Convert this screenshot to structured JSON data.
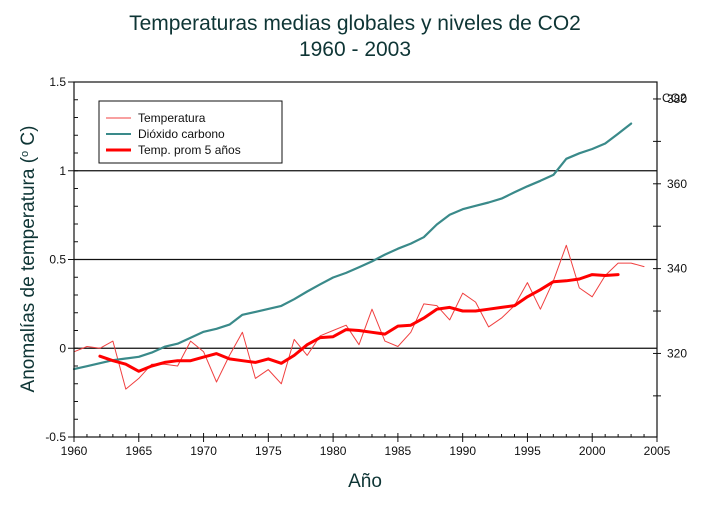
{
  "chart_data": {
    "type": "line",
    "title": "Temperaturas medias globales y niveles de CO2",
    "subtitle": "1960 - 2003",
    "xlabel": "Año",
    "ylabel": "Anomalías de temperatura (° C)",
    "ylabel_parts": {
      "main": "Anomalías de temperatura (",
      "sup": "o",
      "tail": " C)"
    },
    "y2label": "CO2",
    "xlim": [
      1960,
      2005
    ],
    "ylim": [
      -0.5,
      1.5
    ],
    "y2lim": [
      300.3,
      384.0
    ],
    "x_ticks": [
      1960,
      1965,
      1970,
      1975,
      1980,
      1985,
      1990,
      1995,
      2000,
      2005
    ],
    "x_tick_labels": [
      "1960",
      "1965",
      "1970",
      "1975",
      "1980",
      "1985",
      "1990",
      "1995",
      "2000",
      "2005"
    ],
    "y_ticks": [
      -0.5,
      0,
      0.5,
      1,
      1.5
    ],
    "y_tick_labels": [
      "-0.5",
      "0",
      "0.5",
      "1",
      "1.5"
    ],
    "y2_ticks": [
      320,
      340,
      360,
      380
    ],
    "y2_tick_labels": [
      "320",
      "340",
      "360",
      "380"
    ],
    "gridlines_y": [
      0,
      0.5,
      1
    ],
    "legend_position": "top-left",
    "series": [
      {
        "name": "Temperatura",
        "axis": "left",
        "color": "#f04040",
        "x": [
          1960,
          1961,
          1962,
          1963,
          1964,
          1965,
          1966,
          1967,
          1968,
          1969,
          1970,
          1971,
          1972,
          1973,
          1974,
          1975,
          1976,
          1977,
          1978,
          1979,
          1980,
          1981,
          1982,
          1983,
          1984,
          1985,
          1986,
          1987,
          1988,
          1989,
          1990,
          1991,
          1992,
          1993,
          1994,
          1995,
          1996,
          1997,
          1998,
          1999,
          2000,
          2001,
          2002,
          2003,
          2004
        ],
        "values": [
          -0.02,
          0.01,
          0.0,
          0.04,
          -0.23,
          -0.17,
          -0.09,
          -0.09,
          -0.1,
          0.04,
          -0.02,
          -0.19,
          -0.04,
          0.09,
          -0.17,
          -0.12,
          -0.2,
          0.05,
          -0.04,
          0.07,
          0.1,
          0.13,
          0.02,
          0.22,
          0.04,
          0.01,
          0.09,
          0.25,
          0.24,
          0.16,
          0.31,
          0.26,
          0.12,
          0.17,
          0.24,
          0.37,
          0.22,
          0.38,
          0.58,
          0.34,
          0.29,
          0.41,
          0.48,
          0.48,
          0.46
        ]
      },
      {
        "name": "Dióxido carbono",
        "axis": "right",
        "color": "#3a8a8a",
        "x": [
          1960,
          1961,
          1962,
          1963,
          1964,
          1965,
          1966,
          1967,
          1968,
          1969,
          1970,
          1971,
          1972,
          1973,
          1974,
          1975,
          1976,
          1977,
          1978,
          1979,
          1980,
          1981,
          1982,
          1983,
          1984,
          1985,
          1986,
          1987,
          1988,
          1989,
          1990,
          1991,
          1992,
          1993,
          1994,
          1995,
          1996,
          1997,
          1998,
          1999,
          2000,
          2001,
          2002,
          2003
        ],
        "values": [
          316.3,
          317.0,
          317.7,
          318.4,
          318.8,
          319.2,
          320.2,
          321.6,
          322.3,
          323.7,
          325.1,
          325.8,
          326.8,
          329.1,
          329.8,
          330.5,
          331.2,
          332.8,
          334.6,
          336.3,
          337.9,
          339.0,
          340.3,
          341.7,
          343.3,
          344.7,
          345.9,
          347.4,
          350.4,
          352.7,
          354.0,
          354.8,
          355.6,
          356.5,
          358.0,
          359.4,
          360.7,
          362.1,
          365.9,
          367.2,
          368.2,
          369.5,
          371.8,
          374.2
        ]
      },
      {
        "name": "Temp. prom 5 años",
        "axis": "left",
        "color": "#ff0000",
        "x": [
          1962,
          1963,
          1964,
          1965,
          1966,
          1967,
          1968,
          1969,
          1970,
          1971,
          1972,
          1973,
          1974,
          1975,
          1976,
          1977,
          1978,
          1979,
          1980,
          1981,
          1982,
          1983,
          1984,
          1985,
          1986,
          1987,
          1988,
          1989,
          1990,
          1991,
          1992,
          1993,
          1994,
          1995,
          1996,
          1997,
          1998,
          1999,
          2000,
          2001,
          2002
        ],
        "values": [
          -0.045,
          -0.07,
          -0.09,
          -0.13,
          -0.1,
          -0.08,
          -0.07,
          -0.07,
          -0.05,
          -0.03,
          -0.06,
          -0.07,
          -0.08,
          -0.06,
          -0.085,
          -0.04,
          0.02,
          0.06,
          0.065,
          0.105,
          0.1,
          0.09,
          0.08,
          0.125,
          0.13,
          0.17,
          0.22,
          0.23,
          0.21,
          0.21,
          0.22,
          0.23,
          0.24,
          0.29,
          0.33,
          0.375,
          0.38,
          0.39,
          0.415,
          0.41,
          0.415
        ]
      }
    ]
  }
}
